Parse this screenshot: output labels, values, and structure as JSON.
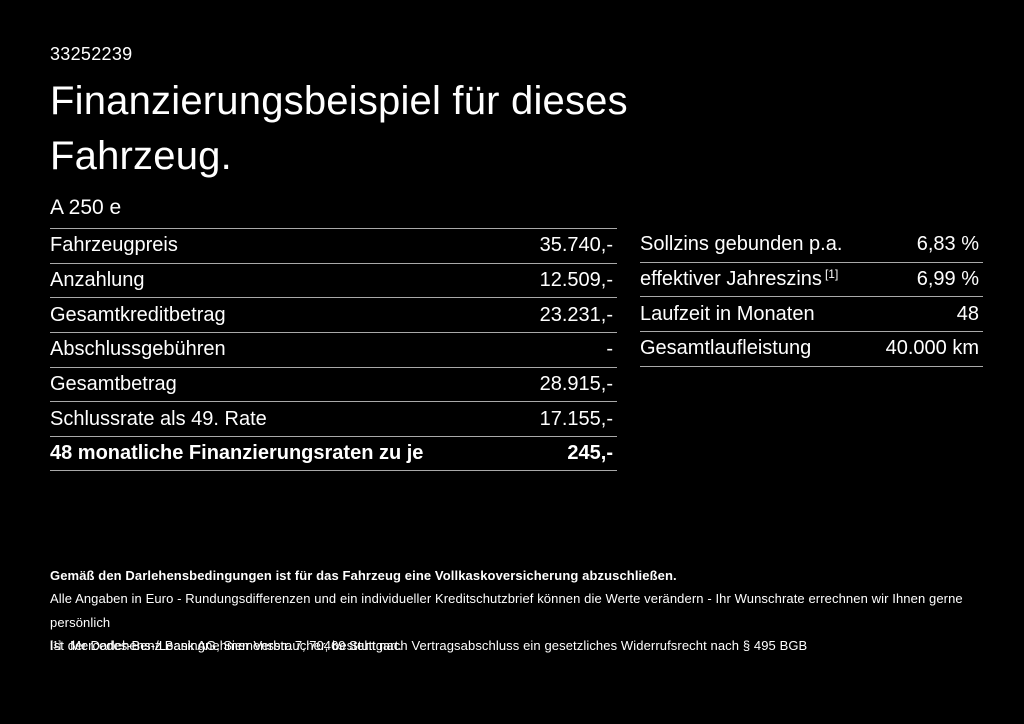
{
  "page": {
    "id_number": "33252239",
    "title_line1": "Finanzierungsbeispiel für dieses",
    "title_line2": "Fahrzeug.",
    "model": "A 250 e"
  },
  "finance_table": {
    "rows": [
      {
        "label": "Fahrzeugpreis",
        "value": "35.740,-"
      },
      {
        "label": "Anzahlung",
        "value": "12.509,-"
      },
      {
        "label": "Gesamtkreditbetrag",
        "value": "23.231,-"
      },
      {
        "label": "Abschlussgebühren",
        "value": "-"
      },
      {
        "label": "Gesamtbetrag",
        "value": "28.915,-"
      },
      {
        "label": "Schlussrate als 49. Rate",
        "value": "17.155,-"
      },
      {
        "label": "48 monatliche Finanzierungsraten zu je",
        "value": "245,-"
      }
    ]
  },
  "conditions_table": {
    "rows": [
      {
        "label": "Sollzins gebunden p.a.",
        "sup": "",
        "value": "6,83 %"
      },
      {
        "label": "effektiver Jahreszins",
        "sup": "[1]",
        "value": "6,99 %"
      },
      {
        "label": "Laufzeit in Monaten",
        "sup": "",
        "value": "48"
      },
      {
        "label": "Gesamtlaufleistung",
        "sup": "",
        "value": "40.000 km"
      }
    ]
  },
  "footer": {
    "bold_note": "Gemäß den Darlehensbedingungen ist für das Fahrzeug eine Vollkaskoversicherung abzuschließen.",
    "note1": "Alle Angaben in Euro - Rundungsdifferenzen und ein individueller Kreditschutzbrief können die Werte verändern - Ihr Wunschrate errechnen wir Ihnen gerne persönlich",
    "note2": "Ist der Darlehens-/Leasingnehmer Verbraucher, besteht nach Vertragsabschluss ein gesetzliches Widerrufsrecht nach § 495 BGB",
    "footnote_marker": "[1]",
    "footnote_text": "Mercedes-Benz Bank AG, Siemensstr. 7, 70469 Stuttgart."
  },
  "colors": {
    "background": "#000000",
    "text": "#ffffff",
    "divider": "#a9a9a9"
  }
}
